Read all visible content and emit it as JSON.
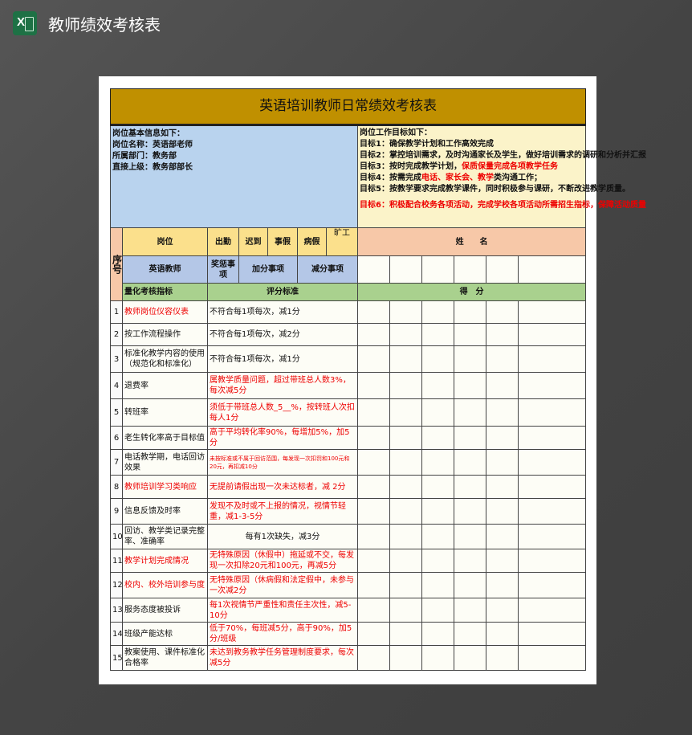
{
  "app": {
    "title": "教师绩效考核表",
    "icon": "excel-icon"
  },
  "sheet": {
    "title": "英语培训教师日常绩效考核表",
    "info": [
      "岗位基本信息如下：",
      "岗位名称：英语部老师",
      "所属部门：教务部",
      "直接上级：教务部部长"
    ],
    "goals_title": "岗位工作目标如下：",
    "goals": [
      [
        {
          "t": "目标1：确保教学计划和工作高效完成",
          "r": false
        }
      ],
      [
        {
          "t": "目标2：掌控培训需求，及时沟通家长及学生，做好培训需求的调研和分析并汇报",
          "r": false
        }
      ],
      [
        {
          "t": "目标3：按时完成教学计划，",
          "r": false
        },
        {
          "t": "保质保量完成各项教学任务",
          "r": true
        }
      ],
      [
        {
          "t": "目标4：按需完成",
          "r": false
        },
        {
          "t": "电话、家长会、教学",
          "r": true
        },
        {
          "t": "类沟通工作；",
          "r": false
        }
      ],
      [
        {
          "t": "目标5：按教学要求完成教学课件，同时积极参与课研，不断改进教学质量。",
          "r": false
        }
      ],
      [
        {
          "t": "目标6：积极配合校务各项活动，完成学校各项活动所需招生指标，保障活动质量",
          "r": true
        }
      ]
    ],
    "headers": {
      "seq": "序号",
      "position": "岗位",
      "attendance": "出勤",
      "late": "迟到",
      "personal_leave": "事假",
      "sick_leave": "病假",
      "absent": "旷工",
      "name": "姓　　名",
      "teacher": "英语教师",
      "reward": "奖惩事项",
      "bonus": "加分事项",
      "deduct": "减分事项",
      "indicator": "量化考核指标",
      "criteria": "评分标准",
      "score": "得　分"
    },
    "rows": [
      {
        "n": "1",
        "ind": "教师岗位仪容仪表",
        "ind_red": true,
        "crit": "不符合每1项每次，减1分",
        "crit_red": false
      },
      {
        "n": "2",
        "ind": "按工作流程操作",
        "ind_red": false,
        "crit": "不符合每1项每次，减2分",
        "crit_red": false
      },
      {
        "n": "3",
        "ind": "标准化教学内容的使用（规范化和标准化）",
        "ind_red": false,
        "crit": "不符合每1项每次，减1分",
        "crit_red": false
      },
      {
        "n": "4",
        "ind": "退费率",
        "ind_red": false,
        "crit": "属教学质量问题，超过带班总人数3%，每次减5分",
        "crit_red": true
      },
      {
        "n": "5",
        "ind": "转班率",
        "ind_red": false,
        "crit": "须低于带班总人数_5__%，按转班人次扣每人1分",
        "crit_red": true
      },
      {
        "n": "6",
        "ind": "老生转化率高于目标值",
        "ind_red": false,
        "crit": "高于平均转化率90%，每增加5%，加5分",
        "crit_red": true
      },
      {
        "n": "7",
        "ind": "电话教学期，电话回访效果",
        "ind_red": false,
        "crit": "未按标准或不属于回访范围，每发现一次扣罚和100元和20元，再扣减10分",
        "crit_red": true
      },
      {
        "n": "8",
        "ind": "教师培训学习类响应",
        "ind_red": true,
        "crit": "无提前请假出现一次未达标者，减 2分",
        "crit_red": true
      },
      {
        "n": "9",
        "ind": "信息反馈及时率",
        "ind_red": false,
        "crit": "发现不及时或不上报的情况，视情节轻重，减1-3-5分",
        "crit_red": true
      },
      {
        "n": "10",
        "ind": "回访、教学类记录完整率、准确率",
        "ind_red": false,
        "crit": "每有1次缺失，减3分",
        "crit_red": false
      },
      {
        "n": "11",
        "ind": "教学计划完成情况",
        "ind_red": true,
        "crit": "无特殊原因（休假中）拖延或不交，每发现一次扣除20元和100元，再减5分",
        "crit_red": true
      },
      {
        "n": "12",
        "ind": "校内、校外培训参与度",
        "ind_red": true,
        "crit": "无特殊原因（休病假和法定假中，未参与一次减2分",
        "crit_red": true
      },
      {
        "n": "13",
        "ind": "服务态度被投诉",
        "ind_red": false,
        "crit": "每1次视情节严重性和责任主次性，减5- 10分",
        "crit_red": true
      },
      {
        "n": "14",
        "ind": "班级产能达标",
        "ind_red": false,
        "crit": "低于70%，每班减5分，高于90%，加5分/班级",
        "crit_red": true
      },
      {
        "n": "15",
        "ind": "教案使用、课件标准化合格率",
        "ind_red": false,
        "crit": "未达到教务教学任务管理制度要求，每次减5分",
        "crit_red": true
      }
    ]
  }
}
